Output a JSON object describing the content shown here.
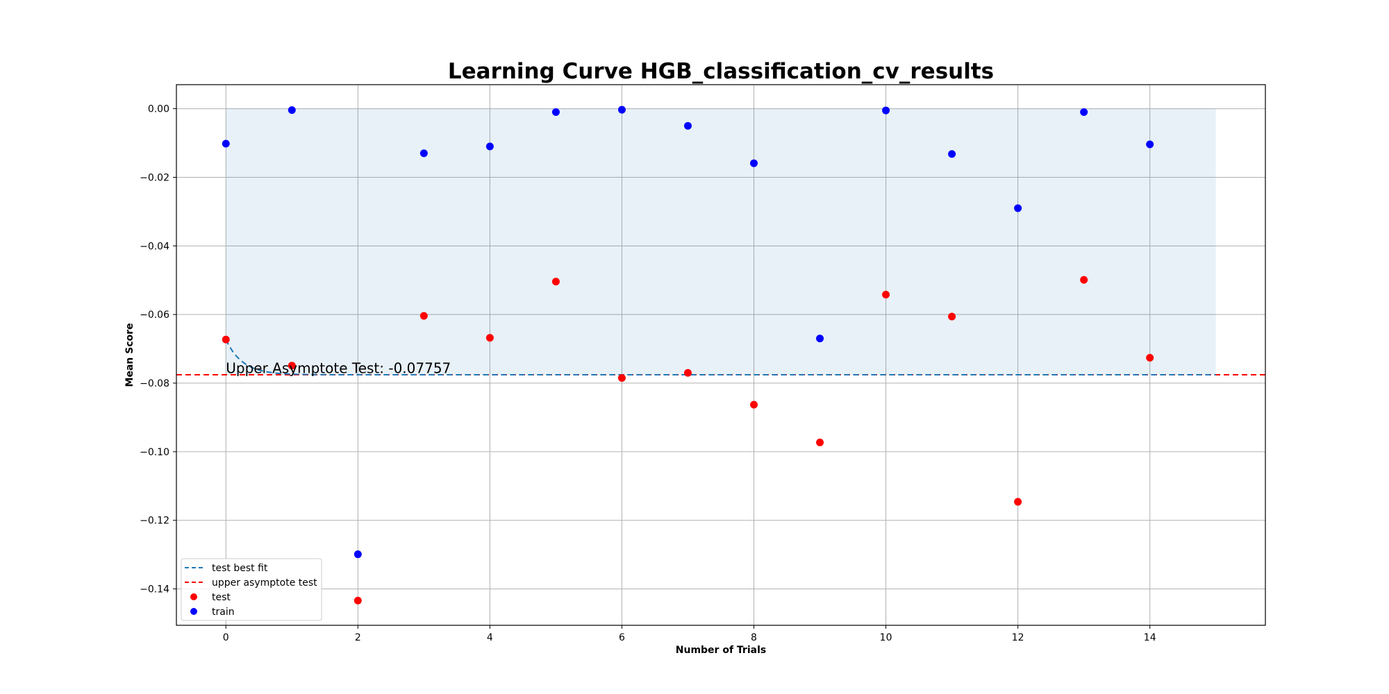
{
  "chart_data": {
    "type": "scatter",
    "title": "Learning Curve HGB_classification_cv_results",
    "xlabel": "Number of Trials",
    "ylabel": "Mean Score",
    "xlim": [
      -0.75,
      15.75
    ],
    "ylim": [
      -0.1506,
      0.007
    ],
    "x_ticks": [
      0,
      2,
      4,
      6,
      8,
      10,
      12,
      14
    ],
    "y_ticks": [
      0.0,
      -0.02,
      -0.04,
      -0.06,
      -0.08,
      -0.1,
      -0.12,
      -0.14
    ],
    "y_tick_labels": [
      "0.00",
      "−0.02",
      "−0.04",
      "−0.06",
      "−0.08",
      "−0.10",
      "−0.12",
      "−0.14"
    ],
    "grid": true,
    "legend_position": "lower-left",
    "series": [
      {
        "name": "test",
        "kind": "scatter",
        "color": "#ff0000",
        "x": [
          0,
          1,
          2,
          3,
          4,
          5,
          6,
          7,
          8,
          9,
          10,
          11,
          12,
          13,
          14
        ],
        "y": [
          -0.0673,
          -0.0749,
          -0.1434,
          -0.0604,
          -0.0668,
          -0.0504,
          -0.0785,
          -0.077,
          -0.0863,
          -0.0973,
          -0.0542,
          -0.0606,
          -0.1146,
          -0.0499,
          -0.0726
        ]
      },
      {
        "name": "train",
        "kind": "scatter",
        "color": "#0000ff",
        "x": [
          0,
          1,
          2,
          3,
          4,
          5,
          6,
          7,
          8,
          9,
          10,
          11,
          12,
          13,
          14
        ],
        "y": [
          -0.0102,
          -0.0004,
          -0.1299,
          -0.013,
          -0.011,
          -0.001,
          -0.0003,
          -0.005,
          -0.0159,
          -0.067,
          -0.0005,
          -0.0132,
          -0.029,
          -0.001,
          -0.0104
        ]
      },
      {
        "name": "test best fit",
        "kind": "line",
        "style": "dashed",
        "color": "#1f77b4",
        "asymptote": -0.07757,
        "start_value": -0.0673,
        "decay": 4.0,
        "x_range": [
          0,
          15
        ]
      },
      {
        "name": "upper asymptote test",
        "kind": "hline",
        "style": "dashed",
        "color": "#ff0000",
        "y": -0.07757
      }
    ],
    "shaded_band": {
      "x_range": [
        0,
        15
      ],
      "y_range": [
        -0.07757,
        0.0
      ],
      "color": "#1f77b4",
      "opacity": 0.1
    },
    "annotation": {
      "text": "Upper Asymptote Test: -0.07757",
      "x": 0,
      "y": -0.0775
    },
    "legend": [
      "test best fit",
      "upper asymptote test",
      "test",
      "train"
    ]
  }
}
